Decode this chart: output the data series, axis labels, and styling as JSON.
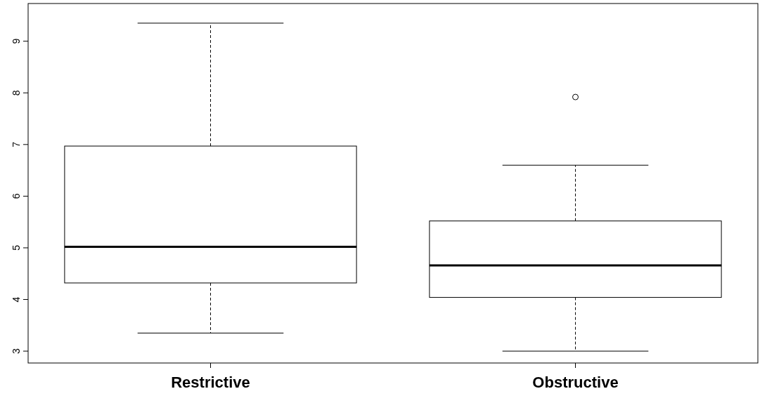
{
  "chart_data": {
    "type": "box",
    "categories": [
      "Restrictive",
      "Obstructive"
    ],
    "boxes": [
      {
        "low": 3.35,
        "q1": 4.32,
        "median": 5.02,
        "q3": 6.97,
        "high": 9.35
      },
      {
        "low": 3.0,
        "q1": 4.04,
        "median": 4.66,
        "q3": 5.52,
        "high": 6.6,
        "outliers": [
          7.92
        ]
      }
    ],
    "color": "#ffffff",
    "ylim": [
      2.77,
      9.73
    ],
    "yticks": [
      3,
      4,
      5,
      6,
      7,
      8,
      9
    ],
    "grid": false
  }
}
